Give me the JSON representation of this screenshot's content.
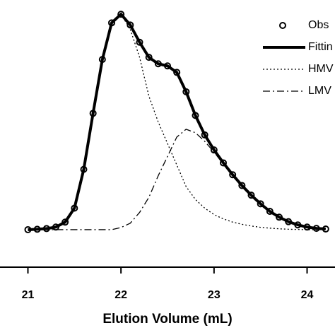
{
  "chart_data": {
    "type": "line",
    "x_label": "Elution Volume (mL)",
    "x": [
      21.0,
      21.1,
      21.2,
      21.3,
      21.4,
      21.5,
      21.6,
      21.7,
      21.8,
      21.9,
      22.0,
      22.1,
      22.2,
      22.3,
      22.4,
      22.5,
      22.6,
      22.7,
      22.8,
      22.9,
      23.0,
      23.1,
      23.2,
      23.3,
      23.4,
      23.5,
      23.6,
      23.7,
      23.8,
      23.9,
      24.0,
      24.1,
      24.2
    ],
    "series": [
      {
        "name": "Obs",
        "color": "#000000",
        "style": "circles",
        "values": [
          0,
          0.002,
          0.005,
          0.012,
          0.035,
          0.1,
          0.28,
          0.54,
          0.79,
          0.96,
          1.0,
          0.95,
          0.87,
          0.8,
          0.77,
          0.76,
          0.73,
          0.64,
          0.53,
          0.44,
          0.37,
          0.31,
          0.255,
          0.205,
          0.16,
          0.12,
          0.085,
          0.058,
          0.037,
          0.022,
          0.012,
          0.006,
          0.003
        ]
      },
      {
        "name": "Fittin",
        "color": "#000000",
        "style": "solid",
        "values": [
          0,
          0.002,
          0.005,
          0.012,
          0.035,
          0.1,
          0.28,
          0.54,
          0.79,
          0.96,
          1.0,
          0.95,
          0.87,
          0.8,
          0.77,
          0.76,
          0.73,
          0.64,
          0.53,
          0.44,
          0.37,
          0.31,
          0.255,
          0.205,
          0.16,
          0.12,
          0.085,
          0.058,
          0.037,
          0.022,
          0.012,
          0.006,
          0.003
        ]
      },
      {
        "name": "HMV",
        "color": "#000000",
        "style": "dotted",
        "values": [
          0,
          0,
          0.002,
          0.01,
          0.03,
          0.1,
          0.28,
          0.54,
          0.79,
          0.96,
          1.0,
          0.93,
          0.8,
          0.62,
          0.5,
          0.4,
          0.3,
          0.2,
          0.14,
          0.1,
          0.07,
          0.05,
          0.035,
          0.025,
          0.017,
          0.011,
          0.007,
          0.004,
          0.002,
          0.001,
          0,
          0,
          0
        ]
      },
      {
        "name": "LMV",
        "color": "#000000",
        "style": "dashdot",
        "values": [
          0,
          0,
          0,
          0,
          0,
          0,
          0,
          0,
          0,
          0,
          0.01,
          0.03,
          0.08,
          0.15,
          0.25,
          0.34,
          0.43,
          0.466,
          0.45,
          0.41,
          0.36,
          0.305,
          0.25,
          0.2,
          0.155,
          0.115,
          0.08,
          0.055,
          0.035,
          0.022,
          0.013,
          0.007,
          0.004
        ]
      }
    ],
    "xlim": [
      20.7,
      24.3
    ],
    "xticks": [
      21,
      22,
      23,
      24
    ],
    "ylim": [
      -0.174,
      1.066
    ],
    "legend": "top-right"
  }
}
